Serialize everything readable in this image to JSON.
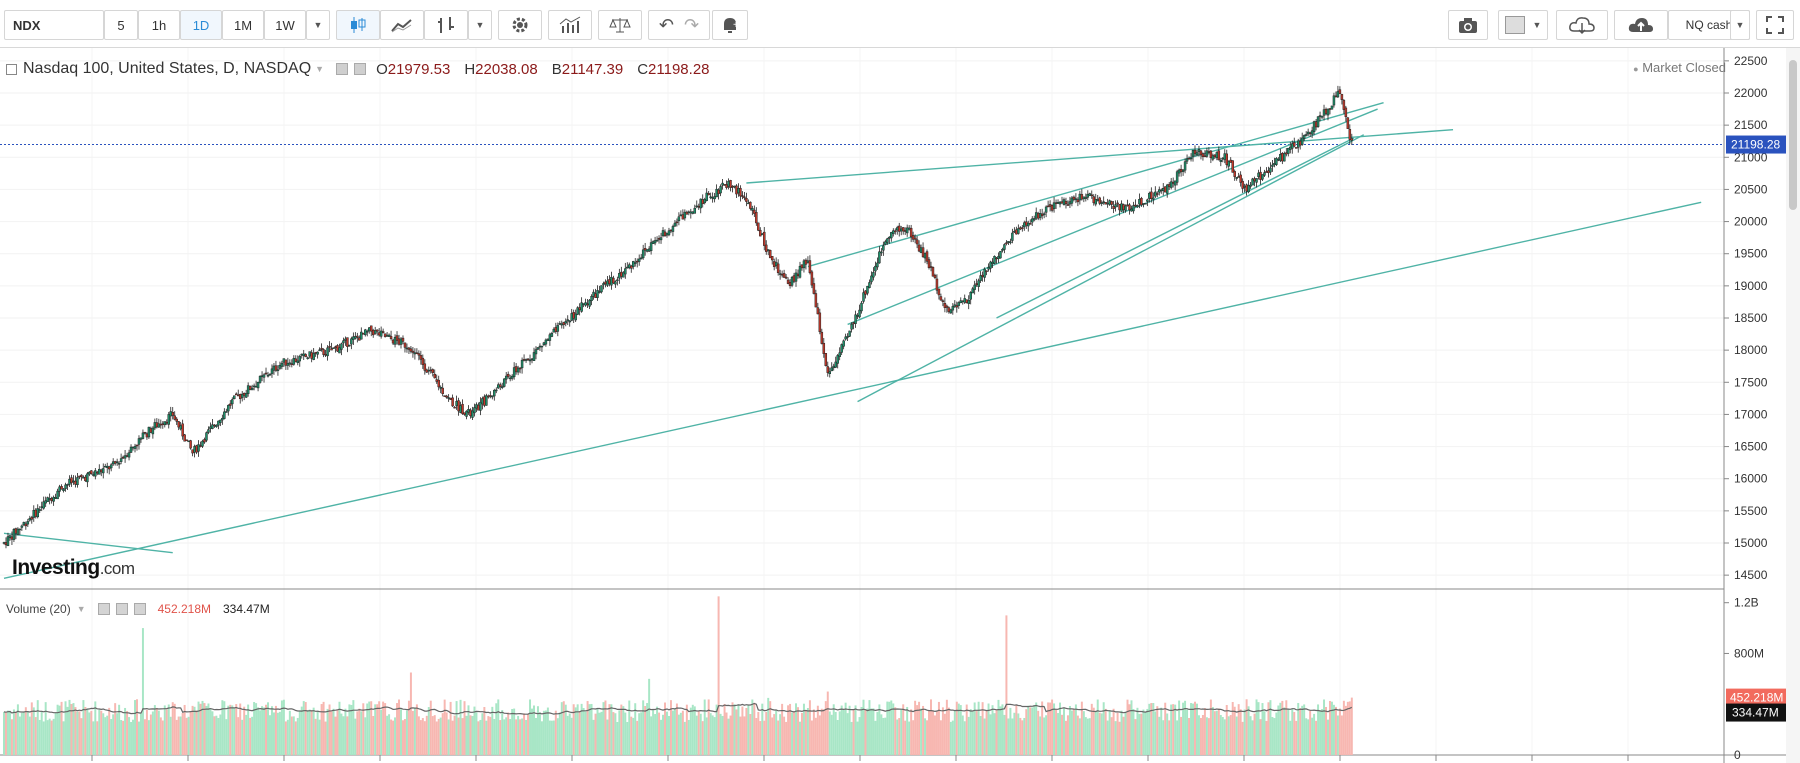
{
  "toolbar": {
    "symbol": "NDX",
    "intervals": [
      "5",
      "1h",
      "1D",
      "1M",
      "1W"
    ],
    "active_interval": "1D",
    "right_label": "NQ cash",
    "icons": [
      "candles-icon",
      "line-chart-icon",
      "bar-chart-icon",
      "settings-icon",
      "indicators-icon",
      "compare-icon",
      "undo-icon",
      "redo-icon",
      "alert-icon",
      "camera-icon",
      "color-icon",
      "cloud-download-icon",
      "cloud-upload-icon",
      "fullscreen-icon"
    ]
  },
  "legend": {
    "title": "Nasdaq 100, United States, D, NASDAQ",
    "o_key": "O",
    "o_val": "21979.53",
    "h_key": "H",
    "h_val": "22038.08",
    "l_key": "В",
    "l_val": "21147.39",
    "c_key": "C",
    "c_val": "21198.28"
  },
  "status": "Market Closed",
  "logo": {
    "main": "Investing",
    "suffix": ".com"
  },
  "volume_legend": {
    "label": "Volume (20)",
    "value1": "452.218M",
    "value2": "334.47M"
  },
  "chart_data": {
    "type": "candlestick",
    "ylim": [
      14300,
      22700
    ],
    "yticks": [
      14500,
      15000,
      15500,
      16000,
      16500,
      17000,
      17500,
      18000,
      18500,
      19000,
      19500,
      20000,
      20500,
      21000,
      21500,
      22000,
      22500
    ],
    "last_price_label": "21198.28",
    "last_price": 21198.28,
    "volume_ylim": [
      0,
      1300
    ],
    "volume_ticks": [
      {
        "v": 0,
        "label": "0"
      },
      {
        "v": 800,
        "label": "800M"
      },
      {
        "v": 1200,
        "label": "1.2B"
      }
    ],
    "volume_last_label": "452.218M",
    "volume_last": 452.218,
    "volume_avg_label": "334.47M",
    "volume_avg": 334.47,
    "price_keypoints": [
      [
        0,
        15000
      ],
      [
        30,
        15900
      ],
      [
        55,
        16200
      ],
      [
        75,
        16800
      ],
      [
        85,
        17000
      ],
      [
        95,
        16400
      ],
      [
        115,
        17200
      ],
      [
        140,
        17800
      ],
      [
        165,
        18000
      ],
      [
        185,
        18300
      ],
      [
        205,
        18050
      ],
      [
        225,
        17200
      ],
      [
        235,
        17000
      ],
      [
        255,
        17600
      ],
      [
        275,
        18200
      ],
      [
        295,
        18800
      ],
      [
        315,
        19300
      ],
      [
        335,
        19900
      ],
      [
        350,
        20300
      ],
      [
        365,
        20600
      ],
      [
        375,
        20300
      ],
      [
        385,
        19500
      ],
      [
        395,
        19000
      ],
      [
        405,
        19400
      ],
      [
        415,
        17600
      ],
      [
        425,
        18200
      ],
      [
        445,
        19800
      ],
      [
        455,
        19900
      ],
      [
        465,
        19400
      ],
      [
        475,
        18600
      ],
      [
        485,
        18800
      ],
      [
        505,
        19700
      ],
      [
        525,
        20200
      ],
      [
        545,
        20400
      ],
      [
        565,
        20200
      ],
      [
        585,
        20500
      ],
      [
        600,
        21100
      ],
      [
        615,
        21000
      ],
      [
        625,
        20500
      ],
      [
        640,
        20900
      ],
      [
        655,
        21300
      ],
      [
        665,
        21700
      ],
      [
        673,
        22000
      ],
      [
        679,
        21200
      ]
    ],
    "volume_spikes": [
      [
        70,
        1000
      ],
      [
        205,
        650
      ],
      [
        325,
        600
      ],
      [
        360,
        1250
      ],
      [
        385,
        450
      ],
      [
        415,
        500
      ],
      [
        480,
        420
      ],
      [
        505,
        1100
      ],
      [
        600,
        420
      ]
    ],
    "trendlines": [
      {
        "from": [
          0,
          15150
        ],
        "to": [
          85,
          14850
        ]
      },
      {
        "from": [
          0,
          14450
        ],
        "to": [
          855,
          20300
        ]
      },
      {
        "from": [
          374,
          20600
        ],
        "to": [
          730,
          21430
        ]
      },
      {
        "from": [
          405,
          19300
        ],
        "to": [
          695,
          21850
        ]
      },
      {
        "from": [
          425,
          18400
        ],
        "to": [
          692,
          21750
        ]
      },
      {
        "from": [
          430,
          17200
        ],
        "to": [
          685,
          21350
        ]
      },
      {
        "from": [
          500,
          18500
        ],
        "to": [
          680,
          21300
        ]
      }
    ],
    "xticks_count": 19
  }
}
